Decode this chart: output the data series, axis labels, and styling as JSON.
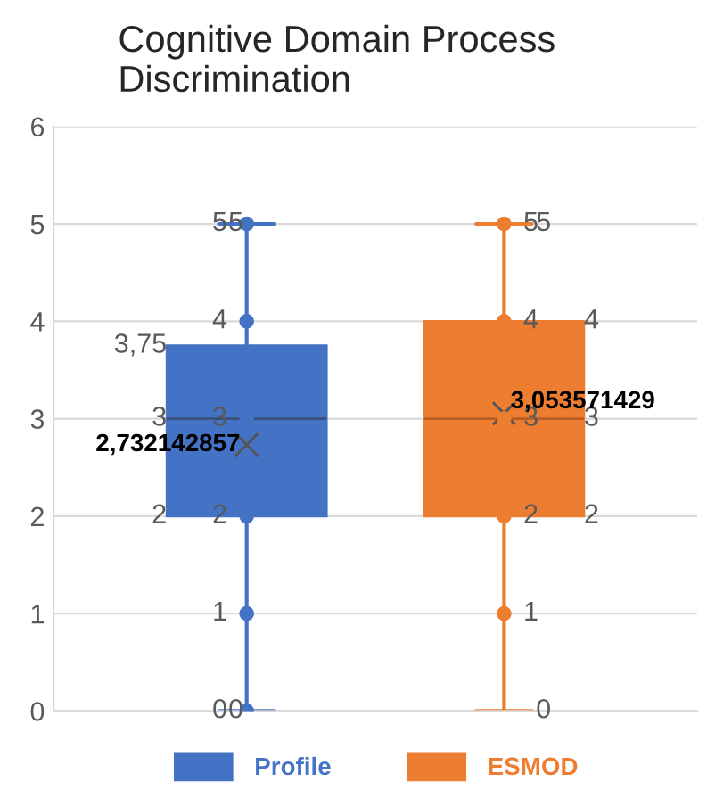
{
  "chart_data": {
    "type": "box",
    "title": "Cognitive Domain Process\nDiscrimination",
    "categories": [
      null
    ],
    "series": [
      {
        "name": "Profile",
        "color": "#4472c4",
        "boxes": [
          {
            "low": 0,
            "q1": 2,
            "median": 3,
            "q3": 3.75,
            "high": 5,
            "mean": 2.732142857
          }
        ]
      },
      {
        "name": "ESMOD",
        "color": "#ed7d31",
        "boxes": [
          {
            "low": 0,
            "q1": 2,
            "median": 3,
            "q3": 4,
            "high": 5,
            "mean": 3.053571429
          }
        ]
      },
      {
        "type": "scatter",
        "color": "#4472c4",
        "x": [
          null,
          null,
          null,
          null,
          null,
          null
        ],
        "values": [
          0,
          1,
          2,
          3,
          4,
          5
        ],
        "value_labels": [
          "0",
          "1",
          "2",
          "3",
          "4",
          "5"
        ]
      },
      {
        "type": "scatter",
        "color": "#ed7d31",
        "x": [
          null,
          null,
          null,
          null,
          null
        ],
        "values": [
          1,
          2,
          3,
          4,
          5
        ],
        "value_labels": [
          "1",
          "2",
          "3",
          "4",
          "5"
        ]
      }
    ],
    "annotations": [
      "0",
      "2",
      "3",
      "3,75",
      "5",
      "2,732142857",
      "0",
      "2",
      "3",
      "4",
      "5",
      "3,053571429"
    ],
    "ylim": [
      0,
      6
    ],
    "yticks": [
      0,
      1,
      2,
      3,
      4,
      5,
      6
    ],
    "grid": "y",
    "legend": "bottom",
    "marker": "circle"
  }
}
